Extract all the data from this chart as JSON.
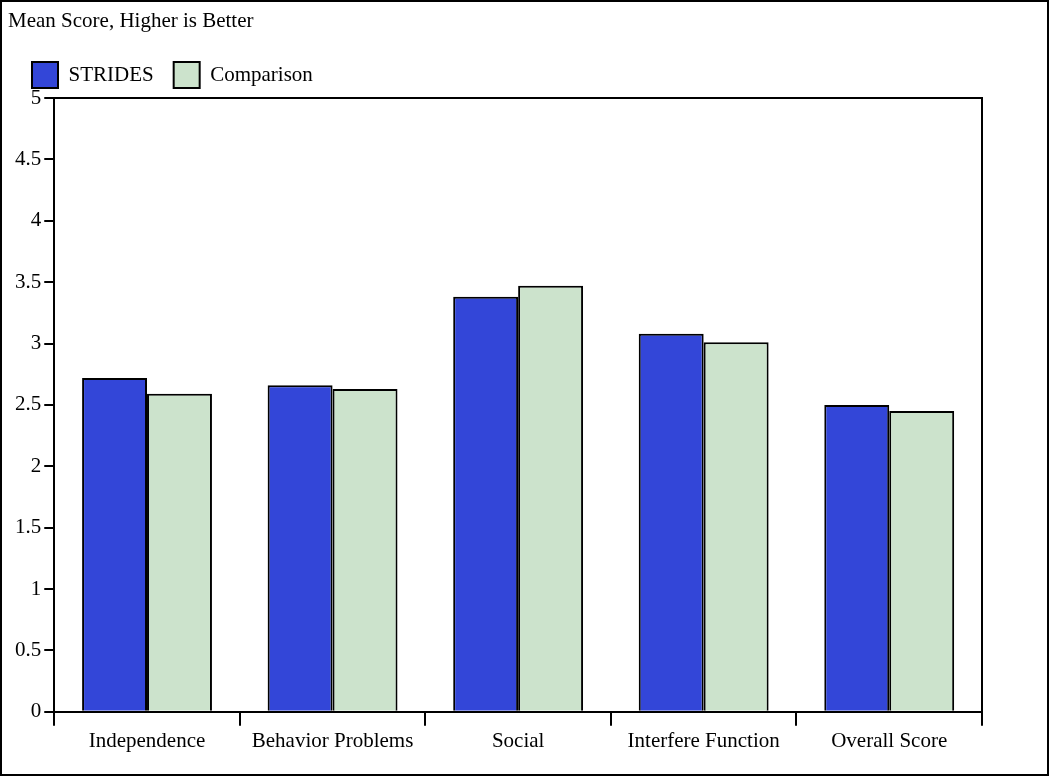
{
  "chart_data": {
    "type": "bar",
    "ylabel": "Mean Score, Higher is Better",
    "categories": [
      "Independence",
      "Behavior Problems",
      "Social",
      "Interfere Function",
      "Overall Score"
    ],
    "series": [
      {
        "name": "STRIDES",
        "color": "#3346d8",
        "values": [
          2.72,
          2.66,
          3.38,
          3.08,
          2.5
        ]
      },
      {
        "name": "Comparison",
        "color": "#cce3cc",
        "values": [
          2.59,
          2.63,
          3.47,
          3.01,
          2.45
        ]
      }
    ],
    "ylim": [
      0,
      5
    ],
    "yticks": [
      0,
      0.5,
      1,
      1.5,
      2,
      2.5,
      3,
      3.5,
      4,
      4.5,
      5
    ],
    "grid": false,
    "legend": "top left"
  }
}
